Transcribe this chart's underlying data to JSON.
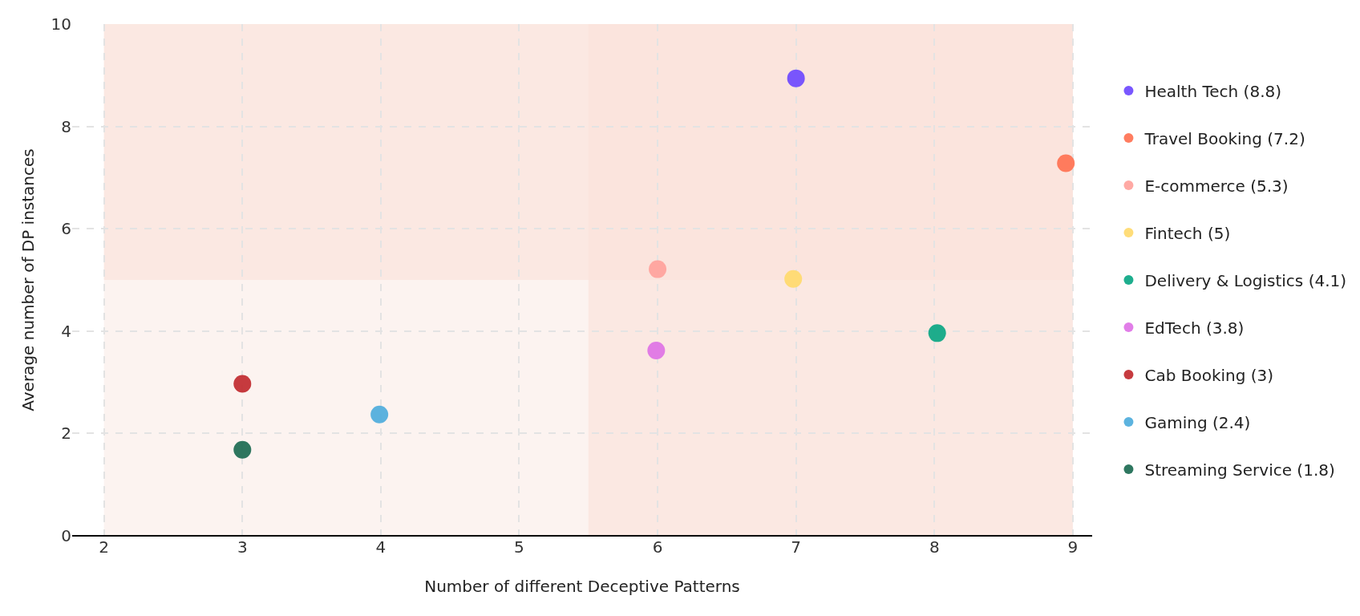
{
  "chart_data": {
    "type": "scatter",
    "xlabel": "Number of different Deceptive Patterns",
    "ylabel": "Average number of DP instances",
    "xlim": [
      1.77,
      9.14
    ],
    "xticks": [
      2,
      3,
      4,
      5,
      6,
      7,
      8,
      9
    ],
    "ylim": [
      0,
      10
    ],
    "yticks": [
      0,
      2,
      4,
      6,
      8,
      10
    ],
    "grid": true,
    "legend": "right",
    "marker": "circle",
    "bands": [
      {
        "axis": "x",
        "from": 2,
        "to": 9,
        "color": "#fbeee9"
      },
      {
        "axis": "x",
        "from": 5.5,
        "to": 9,
        "color": "#fbe2dc"
      },
      {
        "axis": "y",
        "from": 5,
        "to": 10,
        "color": "#fbe2dc"
      }
    ],
    "series": [
      {
        "name": "Health Tech (8.8)",
        "color": "#6a45ff",
        "x": [
          7.0
        ],
        "values": [
          8.94
        ]
      },
      {
        "name": "Travel Booking (7.2)",
        "color": "#ff6f4f",
        "x": [
          8.95
        ],
        "values": [
          7.28
        ]
      },
      {
        "name": "E-commerce (5.3)",
        "color": "#ffa09a",
        "x": [
          6.0
        ],
        "values": [
          5.21
        ]
      },
      {
        "name": "Fintech (5)",
        "color": "#ffd96a",
        "x": [
          6.98
        ],
        "values": [
          5.02
        ]
      },
      {
        "name": "Delivery & Logistics (4.1)",
        "color": "#06a582",
        "x": [
          8.02
        ],
        "values": [
          3.96
        ]
      },
      {
        "name": "EdTech (3.8)",
        "color": "#de70e6",
        "x": [
          5.99
        ],
        "values": [
          3.62
        ]
      },
      {
        "name": "Cab Booking (3)",
        "color": "#c0262a",
        "x": [
          3.0
        ],
        "values": [
          2.97
        ]
      },
      {
        "name": "Gaming (2.4)",
        "color": "#4aabdc",
        "x": [
          3.99
        ],
        "values": [
          2.37
        ]
      },
      {
        "name": "Streaming Service (1.8)",
        "color": "#17684f",
        "x": [
          3.0
        ],
        "values": [
          1.68
        ]
      }
    ]
  }
}
